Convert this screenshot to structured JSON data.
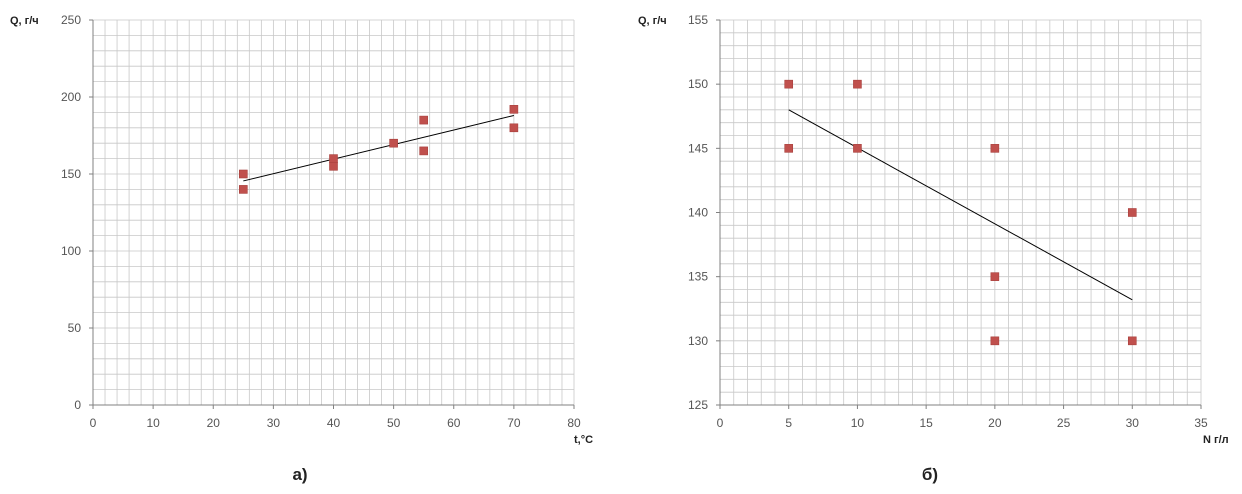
{
  "chart_data": [
    {
      "type": "scatter",
      "caption": "а)",
      "ylabel": "Q, г/ч",
      "xlabel": "t,°C",
      "xlim": [
        0,
        80
      ],
      "ylim": [
        0,
        250
      ],
      "x_major_ticks": [
        0,
        10,
        20,
        30,
        40,
        50,
        60,
        70,
        80
      ],
      "y_major_ticks": [
        0,
        50,
        100,
        150,
        200,
        250
      ],
      "x_minor_step": 2,
      "y_minor_step": 10,
      "grid": true,
      "points": [
        {
          "x": 25,
          "y": 150
        },
        {
          "x": 25,
          "y": 140
        },
        {
          "x": 40,
          "y": 160
        },
        {
          "x": 40,
          "y": 155
        },
        {
          "x": 50,
          "y": 170
        },
        {
          "x": 55,
          "y": 185
        },
        {
          "x": 55,
          "y": 165
        },
        {
          "x": 70,
          "y": 192
        },
        {
          "x": 70,
          "y": 180
        }
      ],
      "trendline": {
        "x": [
          25,
          70
        ],
        "y": [
          145.5,
          188
        ]
      },
      "marker_color": "#c0504d",
      "line_color": "#000000"
    },
    {
      "type": "scatter",
      "caption": "б)",
      "ylabel": "Q, г/ч",
      "xlabel": "N г/л",
      "xlim": [
        0,
        35
      ],
      "ylim": [
        125,
        155
      ],
      "x_major_ticks": [
        0,
        5,
        10,
        15,
        20,
        25,
        30,
        35
      ],
      "y_major_ticks": [
        125,
        130,
        135,
        140,
        145,
        150,
        155
      ],
      "x_minor_step": 1,
      "y_minor_step": 1,
      "grid": true,
      "points": [
        {
          "x": 5,
          "y": 150
        },
        {
          "x": 5,
          "y": 145
        },
        {
          "x": 10,
          "y": 150
        },
        {
          "x": 10,
          "y": 145
        },
        {
          "x": 20,
          "y": 145
        },
        {
          "x": 20,
          "y": 135
        },
        {
          "x": 20,
          "y": 130
        },
        {
          "x": 30,
          "y": 140
        },
        {
          "x": 30,
          "y": 130
        }
      ],
      "trendline": {
        "x": [
          5,
          30
        ],
        "y": [
          148,
          133.2
        ]
      },
      "marker_color": "#c0504d",
      "line_color": "#000000"
    }
  ]
}
